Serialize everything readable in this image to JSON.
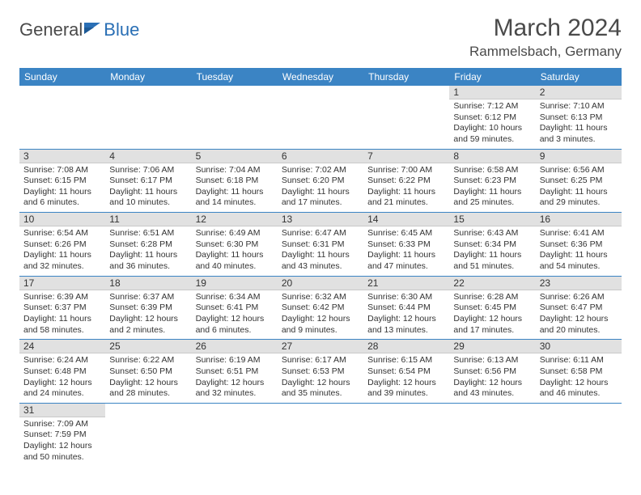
{
  "brand": {
    "part1": "General",
    "part2": "Blue"
  },
  "title": "March 2024",
  "location": "Rammelsbach, Germany",
  "colors": {
    "header_bg": "#3b84c4",
    "header_text": "#ffffff",
    "daynum_bg": "#e1e1e1",
    "row_border": "#3b84c4",
    "text": "#333333",
    "brand_gray": "#4a4a4a",
    "brand_blue": "#2a6fb5"
  },
  "weekdays": [
    "Sunday",
    "Monday",
    "Tuesday",
    "Wednesday",
    "Thursday",
    "Friday",
    "Saturday"
  ],
  "cells": [
    [
      {
        "empty": true
      },
      {
        "empty": true
      },
      {
        "empty": true
      },
      {
        "empty": true
      },
      {
        "empty": true
      },
      {
        "day": "1",
        "sunrise": "Sunrise: 7:12 AM",
        "sunset": "Sunset: 6:12 PM",
        "daylight1": "Daylight: 10 hours",
        "daylight2": "and 59 minutes."
      },
      {
        "day": "2",
        "sunrise": "Sunrise: 7:10 AM",
        "sunset": "Sunset: 6:13 PM",
        "daylight1": "Daylight: 11 hours",
        "daylight2": "and 3 minutes."
      }
    ],
    [
      {
        "day": "3",
        "sunrise": "Sunrise: 7:08 AM",
        "sunset": "Sunset: 6:15 PM",
        "daylight1": "Daylight: 11 hours",
        "daylight2": "and 6 minutes."
      },
      {
        "day": "4",
        "sunrise": "Sunrise: 7:06 AM",
        "sunset": "Sunset: 6:17 PM",
        "daylight1": "Daylight: 11 hours",
        "daylight2": "and 10 minutes."
      },
      {
        "day": "5",
        "sunrise": "Sunrise: 7:04 AM",
        "sunset": "Sunset: 6:18 PM",
        "daylight1": "Daylight: 11 hours",
        "daylight2": "and 14 minutes."
      },
      {
        "day": "6",
        "sunrise": "Sunrise: 7:02 AM",
        "sunset": "Sunset: 6:20 PM",
        "daylight1": "Daylight: 11 hours",
        "daylight2": "and 17 minutes."
      },
      {
        "day": "7",
        "sunrise": "Sunrise: 7:00 AM",
        "sunset": "Sunset: 6:22 PM",
        "daylight1": "Daylight: 11 hours",
        "daylight2": "and 21 minutes."
      },
      {
        "day": "8",
        "sunrise": "Sunrise: 6:58 AM",
        "sunset": "Sunset: 6:23 PM",
        "daylight1": "Daylight: 11 hours",
        "daylight2": "and 25 minutes."
      },
      {
        "day": "9",
        "sunrise": "Sunrise: 6:56 AM",
        "sunset": "Sunset: 6:25 PM",
        "daylight1": "Daylight: 11 hours",
        "daylight2": "and 29 minutes."
      }
    ],
    [
      {
        "day": "10",
        "sunrise": "Sunrise: 6:54 AM",
        "sunset": "Sunset: 6:26 PM",
        "daylight1": "Daylight: 11 hours",
        "daylight2": "and 32 minutes."
      },
      {
        "day": "11",
        "sunrise": "Sunrise: 6:51 AM",
        "sunset": "Sunset: 6:28 PM",
        "daylight1": "Daylight: 11 hours",
        "daylight2": "and 36 minutes."
      },
      {
        "day": "12",
        "sunrise": "Sunrise: 6:49 AM",
        "sunset": "Sunset: 6:30 PM",
        "daylight1": "Daylight: 11 hours",
        "daylight2": "and 40 minutes."
      },
      {
        "day": "13",
        "sunrise": "Sunrise: 6:47 AM",
        "sunset": "Sunset: 6:31 PM",
        "daylight1": "Daylight: 11 hours",
        "daylight2": "and 43 minutes."
      },
      {
        "day": "14",
        "sunrise": "Sunrise: 6:45 AM",
        "sunset": "Sunset: 6:33 PM",
        "daylight1": "Daylight: 11 hours",
        "daylight2": "and 47 minutes."
      },
      {
        "day": "15",
        "sunrise": "Sunrise: 6:43 AM",
        "sunset": "Sunset: 6:34 PM",
        "daylight1": "Daylight: 11 hours",
        "daylight2": "and 51 minutes."
      },
      {
        "day": "16",
        "sunrise": "Sunrise: 6:41 AM",
        "sunset": "Sunset: 6:36 PM",
        "daylight1": "Daylight: 11 hours",
        "daylight2": "and 54 minutes."
      }
    ],
    [
      {
        "day": "17",
        "sunrise": "Sunrise: 6:39 AM",
        "sunset": "Sunset: 6:37 PM",
        "daylight1": "Daylight: 11 hours",
        "daylight2": "and 58 minutes."
      },
      {
        "day": "18",
        "sunrise": "Sunrise: 6:37 AM",
        "sunset": "Sunset: 6:39 PM",
        "daylight1": "Daylight: 12 hours",
        "daylight2": "and 2 minutes."
      },
      {
        "day": "19",
        "sunrise": "Sunrise: 6:34 AM",
        "sunset": "Sunset: 6:41 PM",
        "daylight1": "Daylight: 12 hours",
        "daylight2": "and 6 minutes."
      },
      {
        "day": "20",
        "sunrise": "Sunrise: 6:32 AM",
        "sunset": "Sunset: 6:42 PM",
        "daylight1": "Daylight: 12 hours",
        "daylight2": "and 9 minutes."
      },
      {
        "day": "21",
        "sunrise": "Sunrise: 6:30 AM",
        "sunset": "Sunset: 6:44 PM",
        "daylight1": "Daylight: 12 hours",
        "daylight2": "and 13 minutes."
      },
      {
        "day": "22",
        "sunrise": "Sunrise: 6:28 AM",
        "sunset": "Sunset: 6:45 PM",
        "daylight1": "Daylight: 12 hours",
        "daylight2": "and 17 minutes."
      },
      {
        "day": "23",
        "sunrise": "Sunrise: 6:26 AM",
        "sunset": "Sunset: 6:47 PM",
        "daylight1": "Daylight: 12 hours",
        "daylight2": "and 20 minutes."
      }
    ],
    [
      {
        "day": "24",
        "sunrise": "Sunrise: 6:24 AM",
        "sunset": "Sunset: 6:48 PM",
        "daylight1": "Daylight: 12 hours",
        "daylight2": "and 24 minutes."
      },
      {
        "day": "25",
        "sunrise": "Sunrise: 6:22 AM",
        "sunset": "Sunset: 6:50 PM",
        "daylight1": "Daylight: 12 hours",
        "daylight2": "and 28 minutes."
      },
      {
        "day": "26",
        "sunrise": "Sunrise: 6:19 AM",
        "sunset": "Sunset: 6:51 PM",
        "daylight1": "Daylight: 12 hours",
        "daylight2": "and 32 minutes."
      },
      {
        "day": "27",
        "sunrise": "Sunrise: 6:17 AM",
        "sunset": "Sunset: 6:53 PM",
        "daylight1": "Daylight: 12 hours",
        "daylight2": "and 35 minutes."
      },
      {
        "day": "28",
        "sunrise": "Sunrise: 6:15 AM",
        "sunset": "Sunset: 6:54 PM",
        "daylight1": "Daylight: 12 hours",
        "daylight2": "and 39 minutes."
      },
      {
        "day": "29",
        "sunrise": "Sunrise: 6:13 AM",
        "sunset": "Sunset: 6:56 PM",
        "daylight1": "Daylight: 12 hours",
        "daylight2": "and 43 minutes."
      },
      {
        "day": "30",
        "sunrise": "Sunrise: 6:11 AM",
        "sunset": "Sunset: 6:58 PM",
        "daylight1": "Daylight: 12 hours",
        "daylight2": "and 46 minutes."
      }
    ],
    [
      {
        "day": "31",
        "sunrise": "Sunrise: 7:09 AM",
        "sunset": "Sunset: 7:59 PM",
        "daylight1": "Daylight: 12 hours",
        "daylight2": "and 50 minutes."
      },
      {
        "empty": true
      },
      {
        "empty": true
      },
      {
        "empty": true
      },
      {
        "empty": true
      },
      {
        "empty": true
      },
      {
        "empty": true
      }
    ]
  ]
}
